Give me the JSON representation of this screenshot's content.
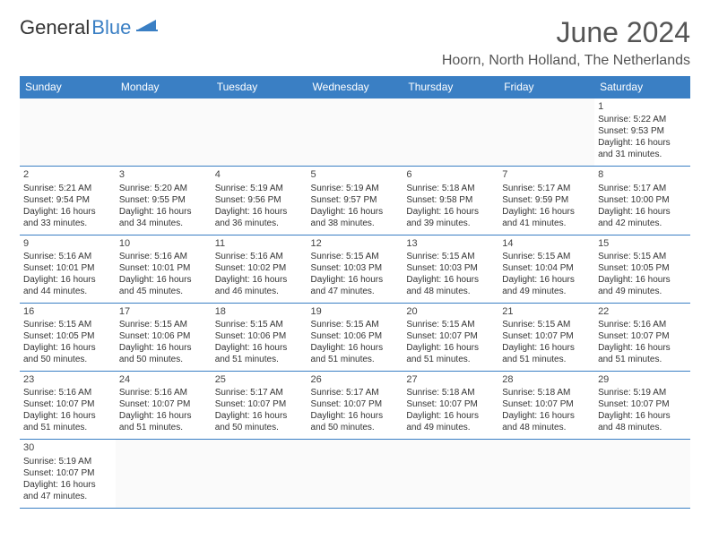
{
  "logo": {
    "text1": "General",
    "text2": "Blue"
  },
  "title": "June 2024",
  "location": "Hoorn, North Holland, The Netherlands",
  "colors": {
    "accent": "#3a7fc4",
    "text": "#333",
    "title": "#555"
  },
  "dayHeaders": [
    "Sunday",
    "Monday",
    "Tuesday",
    "Wednesday",
    "Thursday",
    "Friday",
    "Saturday"
  ],
  "weeks": [
    [
      null,
      null,
      null,
      null,
      null,
      null,
      {
        "n": "1",
        "sr": "Sunrise: 5:22 AM",
        "ss": "Sunset: 9:53 PM",
        "d1": "Daylight: 16 hours",
        "d2": "and 31 minutes."
      }
    ],
    [
      {
        "n": "2",
        "sr": "Sunrise: 5:21 AM",
        "ss": "Sunset: 9:54 PM",
        "d1": "Daylight: 16 hours",
        "d2": "and 33 minutes."
      },
      {
        "n": "3",
        "sr": "Sunrise: 5:20 AM",
        "ss": "Sunset: 9:55 PM",
        "d1": "Daylight: 16 hours",
        "d2": "and 34 minutes."
      },
      {
        "n": "4",
        "sr": "Sunrise: 5:19 AM",
        "ss": "Sunset: 9:56 PM",
        "d1": "Daylight: 16 hours",
        "d2": "and 36 minutes."
      },
      {
        "n": "5",
        "sr": "Sunrise: 5:19 AM",
        "ss": "Sunset: 9:57 PM",
        "d1": "Daylight: 16 hours",
        "d2": "and 38 minutes."
      },
      {
        "n": "6",
        "sr": "Sunrise: 5:18 AM",
        "ss": "Sunset: 9:58 PM",
        "d1": "Daylight: 16 hours",
        "d2": "and 39 minutes."
      },
      {
        "n": "7",
        "sr": "Sunrise: 5:17 AM",
        "ss": "Sunset: 9:59 PM",
        "d1": "Daylight: 16 hours",
        "d2": "and 41 minutes."
      },
      {
        "n": "8",
        "sr": "Sunrise: 5:17 AM",
        "ss": "Sunset: 10:00 PM",
        "d1": "Daylight: 16 hours",
        "d2": "and 42 minutes."
      }
    ],
    [
      {
        "n": "9",
        "sr": "Sunrise: 5:16 AM",
        "ss": "Sunset: 10:01 PM",
        "d1": "Daylight: 16 hours",
        "d2": "and 44 minutes."
      },
      {
        "n": "10",
        "sr": "Sunrise: 5:16 AM",
        "ss": "Sunset: 10:01 PM",
        "d1": "Daylight: 16 hours",
        "d2": "and 45 minutes."
      },
      {
        "n": "11",
        "sr": "Sunrise: 5:16 AM",
        "ss": "Sunset: 10:02 PM",
        "d1": "Daylight: 16 hours",
        "d2": "and 46 minutes."
      },
      {
        "n": "12",
        "sr": "Sunrise: 5:15 AM",
        "ss": "Sunset: 10:03 PM",
        "d1": "Daylight: 16 hours",
        "d2": "and 47 minutes."
      },
      {
        "n": "13",
        "sr": "Sunrise: 5:15 AM",
        "ss": "Sunset: 10:03 PM",
        "d1": "Daylight: 16 hours",
        "d2": "and 48 minutes."
      },
      {
        "n": "14",
        "sr": "Sunrise: 5:15 AM",
        "ss": "Sunset: 10:04 PM",
        "d1": "Daylight: 16 hours",
        "d2": "and 49 minutes."
      },
      {
        "n": "15",
        "sr": "Sunrise: 5:15 AM",
        "ss": "Sunset: 10:05 PM",
        "d1": "Daylight: 16 hours",
        "d2": "and 49 minutes."
      }
    ],
    [
      {
        "n": "16",
        "sr": "Sunrise: 5:15 AM",
        "ss": "Sunset: 10:05 PM",
        "d1": "Daylight: 16 hours",
        "d2": "and 50 minutes."
      },
      {
        "n": "17",
        "sr": "Sunrise: 5:15 AM",
        "ss": "Sunset: 10:06 PM",
        "d1": "Daylight: 16 hours",
        "d2": "and 50 minutes."
      },
      {
        "n": "18",
        "sr": "Sunrise: 5:15 AM",
        "ss": "Sunset: 10:06 PM",
        "d1": "Daylight: 16 hours",
        "d2": "and 51 minutes."
      },
      {
        "n": "19",
        "sr": "Sunrise: 5:15 AM",
        "ss": "Sunset: 10:06 PM",
        "d1": "Daylight: 16 hours",
        "d2": "and 51 minutes."
      },
      {
        "n": "20",
        "sr": "Sunrise: 5:15 AM",
        "ss": "Sunset: 10:07 PM",
        "d1": "Daylight: 16 hours",
        "d2": "and 51 minutes."
      },
      {
        "n": "21",
        "sr": "Sunrise: 5:15 AM",
        "ss": "Sunset: 10:07 PM",
        "d1": "Daylight: 16 hours",
        "d2": "and 51 minutes."
      },
      {
        "n": "22",
        "sr": "Sunrise: 5:16 AM",
        "ss": "Sunset: 10:07 PM",
        "d1": "Daylight: 16 hours",
        "d2": "and 51 minutes."
      }
    ],
    [
      {
        "n": "23",
        "sr": "Sunrise: 5:16 AM",
        "ss": "Sunset: 10:07 PM",
        "d1": "Daylight: 16 hours",
        "d2": "and 51 minutes."
      },
      {
        "n": "24",
        "sr": "Sunrise: 5:16 AM",
        "ss": "Sunset: 10:07 PM",
        "d1": "Daylight: 16 hours",
        "d2": "and 51 minutes."
      },
      {
        "n": "25",
        "sr": "Sunrise: 5:17 AM",
        "ss": "Sunset: 10:07 PM",
        "d1": "Daylight: 16 hours",
        "d2": "and 50 minutes."
      },
      {
        "n": "26",
        "sr": "Sunrise: 5:17 AM",
        "ss": "Sunset: 10:07 PM",
        "d1": "Daylight: 16 hours",
        "d2": "and 50 minutes."
      },
      {
        "n": "27",
        "sr": "Sunrise: 5:18 AM",
        "ss": "Sunset: 10:07 PM",
        "d1": "Daylight: 16 hours",
        "d2": "and 49 minutes."
      },
      {
        "n": "28",
        "sr": "Sunrise: 5:18 AM",
        "ss": "Sunset: 10:07 PM",
        "d1": "Daylight: 16 hours",
        "d2": "and 48 minutes."
      },
      {
        "n": "29",
        "sr": "Sunrise: 5:19 AM",
        "ss": "Sunset: 10:07 PM",
        "d1": "Daylight: 16 hours",
        "d2": "and 48 minutes."
      }
    ],
    [
      {
        "n": "30",
        "sr": "Sunrise: 5:19 AM",
        "ss": "Sunset: 10:07 PM",
        "d1": "Daylight: 16 hours",
        "d2": "and 47 minutes."
      },
      null,
      null,
      null,
      null,
      null,
      null
    ]
  ]
}
